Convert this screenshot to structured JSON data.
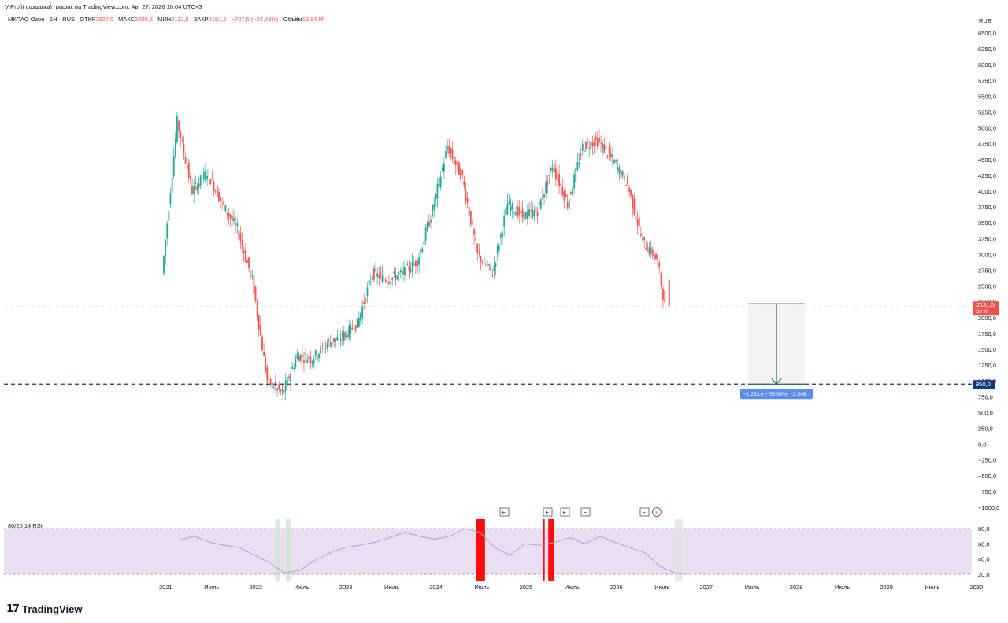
{
  "header": {
    "attribution": "V-Profit создал(а) график на TradingView.com, Авг 27, 2026 10:04 UTC+3",
    "symbol": "МКПАО Озон · 1Н · RUS",
    "open_label": "ОТКР",
    "open_value": "2600,5",
    "high_label": "МАКС",
    "high_value": "2600,5",
    "low_label": "МИН",
    "low_value": "2112,5",
    "close_label": "ЗАКР",
    "close_value": "2181,5",
    "change_value": "−707,5 (−24,49%)",
    "volume_label": "Объём",
    "volume_value": "19,84 M"
  },
  "price_axis": {
    "unit": "RUB",
    "ticks": [
      "6500,0",
      "6250,0",
      "6000,0",
      "5750,0",
      "5500,0",
      "5250,0",
      "5000,0",
      "4750,0",
      "4500,0",
      "4250,0",
      "4000,0",
      "3750,0",
      "3500,0",
      "3250,0",
      "3000,0",
      "2750,0",
      "2500,0",
      "2250,0",
      "2000,0",
      "1750,0",
      "1500,0",
      "1250,0",
      "1000,0",
      "750,0",
      "500,0",
      "250,0",
      "0,0",
      "−250,0",
      "−500,0",
      "−750,0",
      "−1000,0"
    ]
  },
  "last_price": {
    "value": "2181,5",
    "countdown": "3d 9h",
    "color": "#ef5350"
  },
  "target_line": {
    "value": "950,0",
    "color": "#0d3b78"
  },
  "measure": {
    "label": "−1 253,0 (−56,68%) −2 506",
    "color": "#5b8def"
  },
  "rsi": {
    "title": "80/20 14 RSI",
    "ticks": [
      "80,0",
      "60,0",
      "40,0",
      "20,0"
    ]
  },
  "time_axis": {
    "labels": [
      "2021",
      "Июль",
      "2022",
      "Июль",
      "2023",
      "Июль",
      "2024",
      "Июль",
      "2025",
      "Июль",
      "2026",
      "Июль",
      "2027",
      "Июль",
      "2028",
      "Июль",
      "2029",
      "Июль",
      "2030"
    ]
  },
  "earnings_markers": [
    "E",
    "E",
    "E",
    "E",
    "E"
  ],
  "logo_text": "TradingView",
  "chart_data": {
    "type": "line",
    "title": "",
    "x": [
      "2021-01",
      "2021-03",
      "2021-05",
      "2021-07",
      "2021-09",
      "2021-11",
      "2022-01",
      "2022-03",
      "2022-05",
      "2022-07",
      "2022-09",
      "2022-11",
      "2023-01",
      "2023-03",
      "2023-05",
      "2023-07",
      "2023-09",
      "2023-11",
      "2024-01",
      "2024-03",
      "2024-05",
      "2024-07",
      "2024-09",
      "2024-11",
      "2025-01",
      "2025-03",
      "2025-05",
      "2025-07",
      "2025-09",
      "2025-11",
      "2026-01",
      "2026-03",
      "2026-05",
      "2026-07",
      "2026-08"
    ],
    "series": [
      {
        "values": [
          2700,
          5100,
          4000,
          4300,
          3800,
          3400,
          2600,
          1000,
          800,
          1400,
          1350,
          1600,
          1700,
          1900,
          2700,
          2600,
          2700,
          2900,
          3700,
          4700,
          4200,
          3000,
          2700,
          3800,
          3600,
          3700,
          4400,
          3800,
          4700,
          4800,
          4500,
          4100,
          3200,
          2900,
          2181.5
        ]
      }
    ],
    "ylabel": "RUB",
    "ylim": [
      -1000,
      6500
    ],
    "grid": false,
    "rsi_series": [
      {
        "values": [
          65,
          70,
          62,
          58,
          55,
          45,
          35,
          22,
          25,
          38,
          48,
          55,
          58,
          62,
          68,
          75,
          70,
          66,
          70,
          80,
          75,
          55,
          45,
          60,
          58,
          62,
          68,
          60,
          70,
          62,
          55,
          48,
          30,
          22,
          20
        ]
      }
    ]
  }
}
